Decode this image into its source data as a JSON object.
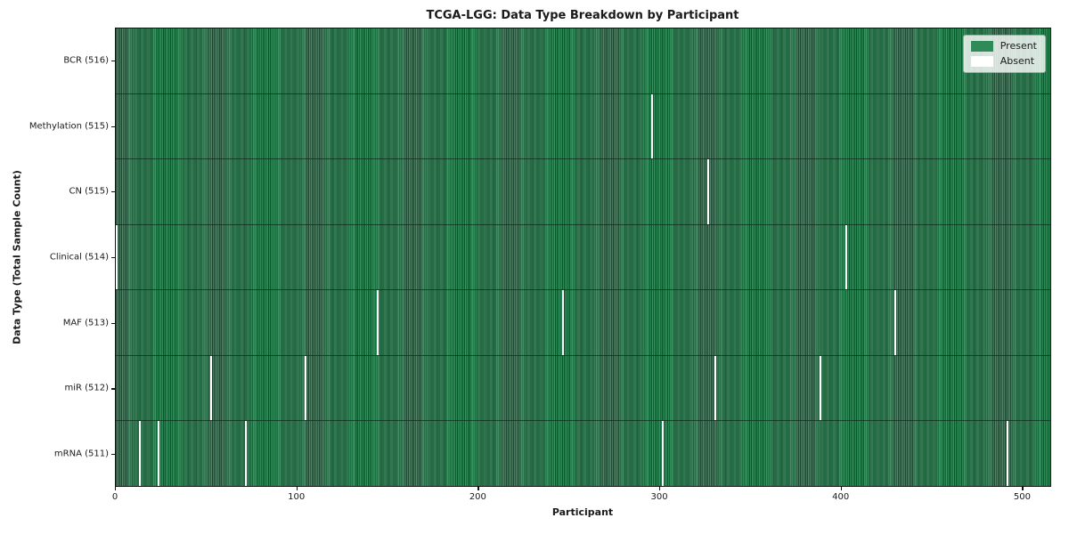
{
  "chart_data": {
    "type": "heatmap",
    "title": "TCGA-LGG: Data Type Breakdown by Participant",
    "xlabel": "Participant",
    "ylabel": "Data Type (Total Sample Count)",
    "x_range": [
      0,
      516
    ],
    "x_ticks": [
      0,
      100,
      200,
      300,
      400,
      500
    ],
    "total_participants": 516,
    "grid": false,
    "legend": {
      "position": "upper right",
      "entries": [
        {
          "label": "Present",
          "color": "#2e8b57"
        },
        {
          "label": "Absent",
          "color": "#ffffff"
        }
      ]
    },
    "rows": [
      {
        "label": "BCR (516)",
        "present_count": 516,
        "absent_participants": []
      },
      {
        "label": "Methylation (515)",
        "present_count": 515,
        "absent_participants": [
          295
        ]
      },
      {
        "label": "CN (515)",
        "present_count": 515,
        "absent_participants": [
          326
        ]
      },
      {
        "label": "Clinical (514)",
        "present_count": 514,
        "absent_participants": [
          0,
          402
        ]
      },
      {
        "label": "MAF (513)",
        "present_count": 513,
        "absent_participants": [
          144,
          246,
          429
        ]
      },
      {
        "label": "miR (512)",
        "present_count": 512,
        "absent_participants": [
          52,
          104,
          330,
          388
        ]
      },
      {
        "label": "mRNA (511)",
        "present_count": 511,
        "absent_participants": [
          13,
          23,
          71,
          301,
          491
        ]
      }
    ],
    "colors": {
      "present": "#2e8b57",
      "present_edge": "#1b4c31",
      "absent": "#ffffff",
      "axis": "#141414",
      "background": "#ffffff"
    }
  }
}
